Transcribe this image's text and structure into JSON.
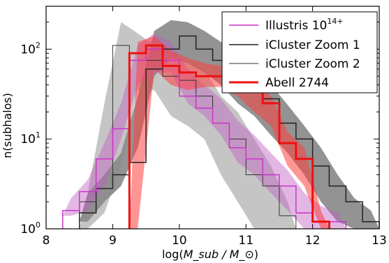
{
  "chart_data": {
    "type": "step",
    "xlabel_base": "log(",
    "xlabel_math": "M_sub / M_⊙",
    "xlabel_end": ")",
    "ylabel": "n(subhalos)",
    "xlim": [
      8.0,
      13.0
    ],
    "ylim": [
      1,
      300
    ],
    "yscale": "log",
    "x_ticks": [
      8,
      9,
      10,
      11,
      12,
      13
    ],
    "x_tick_labels": [
      "8",
      "9",
      "10",
      "11",
      "12",
      "13"
    ],
    "y_ticks": [
      1,
      10,
      100
    ],
    "y_tick_labels": [
      {
        "base": "10",
        "exp": "0"
      },
      {
        "base": "10",
        "exp": "1"
      },
      {
        "base": "10",
        "exp": "2"
      }
    ],
    "legend_position": "top-right",
    "series": [
      {
        "name": "Illustris 10",
        "name_superscript": "14+",
        "color": "#cc33cc",
        "band_color": "#c060c0",
        "line_width": 1.5,
        "edges": [
          8.25,
          8.5,
          8.75,
          9.0,
          9.25,
          9.5,
          9.75,
          10.0,
          10.25,
          10.5,
          10.75,
          11.0,
          11.25,
          11.5,
          11.75,
          12.0,
          12.25,
          12.5
        ],
        "counts": [
          1.6,
          2.6,
          6,
          13,
          75,
          100,
          75,
          30,
          22,
          15,
          8,
          6,
          4,
          3,
          1.5,
          1.2,
          1.2
        ],
        "band_lo": [
          1.4,
          1.6,
          3,
          10,
          40,
          55,
          55,
          25,
          18,
          11,
          5.5,
          4,
          2.5,
          1.6,
          1.0,
          1.0,
          1.0
        ],
        "band_hi": [
          2.2,
          3.5,
          9,
          25,
          110,
          150,
          120,
          60,
          40,
          28,
          16,
          11,
          7,
          4.5,
          2.5,
          1.8,
          1.5
        ]
      },
      {
        "name": "iCluster Zoom 1",
        "color": "#222222",
        "band_color": "#3a3a3a",
        "line_width": 1.5,
        "edges": [
          8.5,
          8.75,
          9.0,
          9.25,
          9.5,
          9.75,
          10.0,
          10.25,
          10.5,
          10.75,
          11.0,
          11.25,
          11.5,
          11.75,
          12.0,
          12.25,
          12.5,
          12.75,
          13.0
        ],
        "counts": [
          1.5,
          2.8,
          4,
          5.5,
          60,
          100,
          140,
          100,
          75,
          55,
          40,
          28,
          15,
          10,
          5,
          3,
          2,
          1.2
        ],
        "band_lo": [
          1.2,
          2.0,
          3,
          8,
          50,
          80,
          70,
          55,
          40,
          25,
          18,
          11,
          7,
          4,
          2,
          1.2,
          1.0,
          1.0
        ],
        "band_hi": [
          2.5,
          4,
          7,
          30,
          160,
          210,
          200,
          160,
          120,
          90,
          60,
          40,
          24,
          14,
          8,
          4,
          2.2,
          1.6
        ]
      },
      {
        "name": "iCluster Zoom 2",
        "color": "#333333",
        "band_color": "#8c8c8c",
        "line_width": 1.0,
        "edges": [
          8.5,
          8.75,
          9.0,
          9.25,
          9.5,
          9.75,
          10.0,
          10.25,
          10.5,
          10.75,
          11.0,
          11.25,
          11.5,
          11.75
        ],
        "counts": [
          2,
          2.8,
          110,
          90,
          75,
          50,
          45,
          30,
          15,
          10,
          4,
          3,
          1.4
        ],
        "band_lo": [
          1.0,
          1.5,
          5,
          35,
          35,
          18,
          14,
          10,
          4,
          2,
          1.0,
          1.0,
          1.0
        ],
        "band_hi": [
          2.5,
          25,
          200,
          150,
          110,
          95,
          70,
          60,
          30,
          20,
          10,
          5,
          2
        ]
      },
      {
        "name": "Abell 2744",
        "color": "#ee1111",
        "band_color": "#ff4040",
        "line_width": 3,
        "edges": [
          9.25,
          9.5,
          9.75,
          10.0,
          10.25,
          10.5,
          10.75,
          11.0,
          11.25,
          11.5,
          11.75,
          12.0,
          12.25
        ],
        "counts": [
          90,
          110,
          65,
          55,
          50,
          50,
          50,
          35,
          25,
          9,
          6,
          1.2
        ],
        "band_lo": [
          1.0,
          60,
          40,
          35,
          38,
          38,
          30,
          20,
          14,
          5,
          3,
          1.0
        ],
        "band_hi": [
          120,
          140,
          95,
          80,
          70,
          65,
          60,
          45,
          30,
          12,
          8,
          1.6
        ]
      }
    ]
  }
}
